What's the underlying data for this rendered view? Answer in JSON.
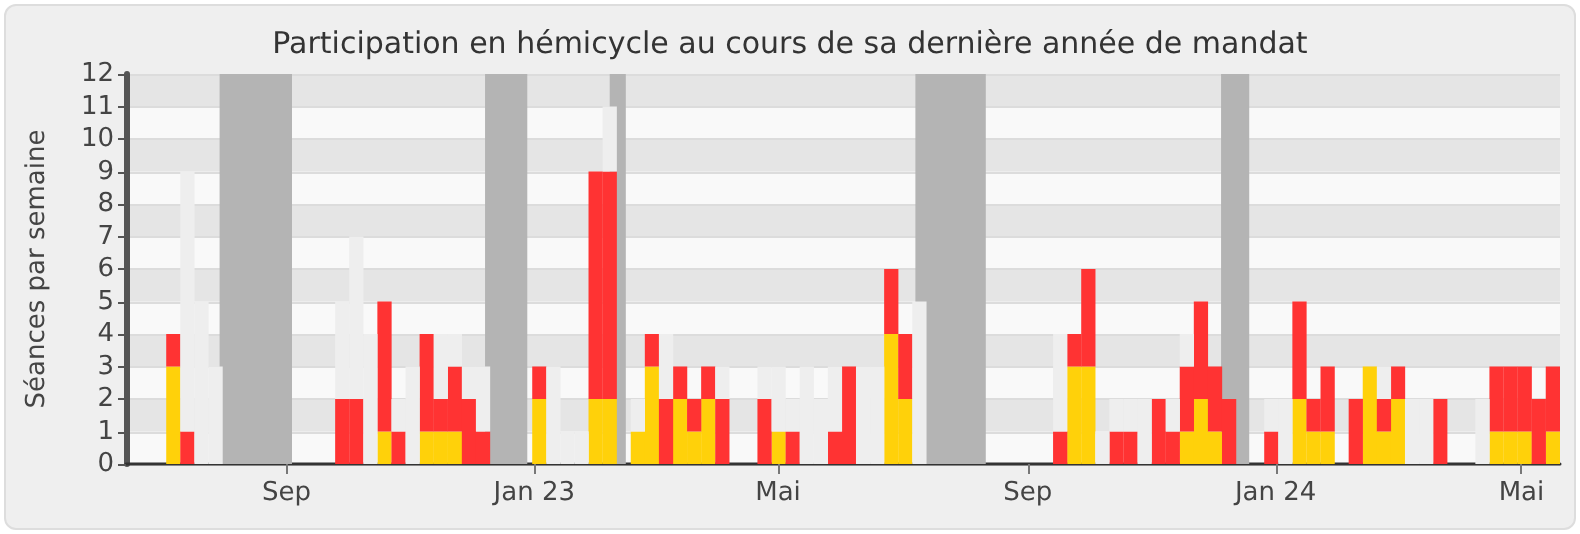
{
  "chart_data": {
    "type": "bar",
    "title": "Participation en hémicycle au cours de sa dernière année de mandat",
    "ylabel": "Séances par semaine",
    "x": [
      "2022-07-04",
      "2022-07-11",
      "2022-07-18",
      "2022-07-25",
      "2022-08-01",
      "2022-08-08",
      "2022-08-15",
      "2022-08-22",
      "2022-08-29",
      "2022-09-05",
      "2022-09-12",
      "2022-09-19",
      "2022-09-26",
      "2022-10-03",
      "2022-10-10",
      "2022-10-17",
      "2022-10-24",
      "2022-10-31",
      "2022-11-07",
      "2022-11-14",
      "2022-11-21",
      "2022-11-28",
      "2022-12-05",
      "2022-12-12",
      "2022-12-19",
      "2022-12-26",
      "2023-01-02",
      "2023-01-09",
      "2023-01-16",
      "2023-01-23",
      "2023-01-30",
      "2023-02-06",
      "2023-02-13",
      "2023-02-20",
      "2023-02-27",
      "2023-03-06",
      "2023-03-13",
      "2023-03-20",
      "2023-03-27",
      "2023-04-03",
      "2023-04-10",
      "2023-04-17",
      "2023-04-24",
      "2023-05-01",
      "2023-05-08",
      "2023-05-15",
      "2023-05-22",
      "2023-05-29",
      "2023-06-05",
      "2023-06-12",
      "2023-06-19",
      "2023-06-26",
      "2023-07-03",
      "2023-07-10",
      "2023-07-17",
      "2023-07-24",
      "2023-07-31",
      "2023-08-07",
      "2023-08-14",
      "2023-08-21",
      "2023-08-28",
      "2023-09-04",
      "2023-09-11",
      "2023-09-18",
      "2023-09-25",
      "2023-10-02",
      "2023-10-09",
      "2023-10-16",
      "2023-10-23",
      "2023-10-30",
      "2023-11-06",
      "2023-11-13",
      "2023-11-20",
      "2023-11-27",
      "2023-12-04",
      "2023-12-11",
      "2023-12-18",
      "2023-12-25",
      "2024-01-01",
      "2024-01-08",
      "2024-01-15",
      "2024-01-22",
      "2024-01-29",
      "2024-02-05",
      "2024-02-12",
      "2024-02-19",
      "2024-02-26",
      "2024-03-04",
      "2024-03-11",
      "2024-03-18",
      "2024-03-25",
      "2024-04-01",
      "2024-04-08",
      "2024-04-15",
      "2024-04-22",
      "2024-04-29",
      "2024-05-06",
      "2024-05-13",
      "2024-05-20"
    ],
    "series": [
      {
        "color": "#ffd10a",
        "values": [
          3,
          null,
          null,
          null,
          null,
          null,
          null,
          null,
          null,
          null,
          null,
          null,
          null,
          null,
          null,
          1,
          null,
          null,
          1,
          1,
          1,
          null,
          null,
          null,
          null,
          null,
          2,
          null,
          null,
          null,
          2,
          2,
          null,
          1,
          3,
          null,
          2,
          1,
          2,
          null,
          null,
          null,
          null,
          1,
          null,
          null,
          null,
          null,
          null,
          null,
          null,
          4,
          2,
          null,
          null,
          null,
          null,
          null,
          null,
          null,
          null,
          null,
          null,
          null,
          3,
          3,
          null,
          null,
          null,
          null,
          null,
          null,
          1,
          2,
          1,
          null,
          null,
          null,
          null,
          null,
          2,
          1,
          1,
          null,
          null,
          3,
          1,
          2,
          null,
          null,
          null,
          null,
          null,
          null,
          1,
          1,
          1,
          null,
          1
        ]
      },
      {
        "color": "#ff3333",
        "values": [
          1,
          1,
          null,
          null,
          null,
          null,
          null,
          null,
          null,
          null,
          null,
          null,
          2,
          2,
          null,
          4,
          1,
          null,
          3,
          1,
          2,
          2,
          1,
          null,
          null,
          null,
          1,
          null,
          null,
          null,
          7,
          7,
          null,
          null,
          1,
          2,
          1,
          1,
          1,
          2,
          null,
          null,
          2,
          null,
          1,
          null,
          null,
          1,
          3,
          null,
          null,
          2,
          2,
          null,
          null,
          null,
          null,
          null,
          null,
          null,
          null,
          null,
          null,
          1,
          1,
          3,
          null,
          1,
          1,
          null,
          2,
          1,
          2,
          3,
          2,
          2,
          null,
          null,
          1,
          null,
          3,
          1,
          2,
          null,
          2,
          null,
          1,
          1,
          null,
          null,
          2,
          null,
          null,
          null,
          2,
          2,
          2,
          2,
          2
        ]
      },
      {
        "color": "#eeeeee",
        "values": [
          null,
          8,
          5,
          3,
          null,
          null,
          null,
          null,
          null,
          null,
          null,
          null,
          3,
          5,
          4,
          null,
          1,
          3,
          null,
          2,
          1,
          1,
          2,
          null,
          null,
          null,
          null,
          3,
          1,
          1,
          null,
          2,
          null,
          1,
          null,
          2,
          null,
          null,
          null,
          1,
          null,
          null,
          1,
          2,
          1,
          3,
          2,
          2,
          null,
          3,
          3,
          null,
          null,
          5,
          null,
          null,
          null,
          null,
          null,
          null,
          null,
          null,
          null,
          3,
          null,
          null,
          1,
          1,
          1,
          2,
          null,
          1,
          1,
          null,
          null,
          null,
          null,
          null,
          1,
          2,
          null,
          null,
          null,
          null,
          null,
          null,
          1,
          null,
          2,
          2,
          null,
          null,
          null,
          2,
          null,
          null,
          null,
          null,
          null
        ]
      }
    ],
    "stacked": true,
    "xlim": [
      "2022-06-14",
      "2024-05-20"
    ],
    "xticks": [
      {
        "value": "2022-09-01",
        "label": "Sep"
      },
      {
        "value": "2023-01-01",
        "label": "Jan 23"
      },
      {
        "value": "2023-05-01",
        "label": "Mai"
      },
      {
        "value": "2023-09-01",
        "label": "Sep"
      },
      {
        "value": "2024-01-01",
        "label": "Jan 24"
      },
      {
        "value": "2024-05-01",
        "label": "Mai"
      }
    ],
    "ylim": [
      0,
      12
    ],
    "yticks": [
      0,
      1,
      2,
      3,
      4,
      5,
      6,
      7,
      8,
      9,
      10,
      11,
      12
    ],
    "bands": [
      {
        "axis": "x",
        "from": "2022-07-27",
        "to": "2022-09-01",
        "color": "#b4b4b4"
      },
      {
        "axis": "x",
        "from": "2022-12-06",
        "to": "2022-12-27",
        "color": "#b4b4b4"
      },
      {
        "axis": "x",
        "from": "2023-02-06",
        "to": "2023-02-14",
        "color": "#b4b4b4"
      },
      {
        "axis": "x",
        "from": "2023-07-08",
        "to": "2023-08-12",
        "color": "#b4b4b4"
      },
      {
        "axis": "x",
        "from": "2023-12-07",
        "to": "2023-12-21",
        "color": "#b4b4b4"
      }
    ],
    "grid": "y"
  }
}
